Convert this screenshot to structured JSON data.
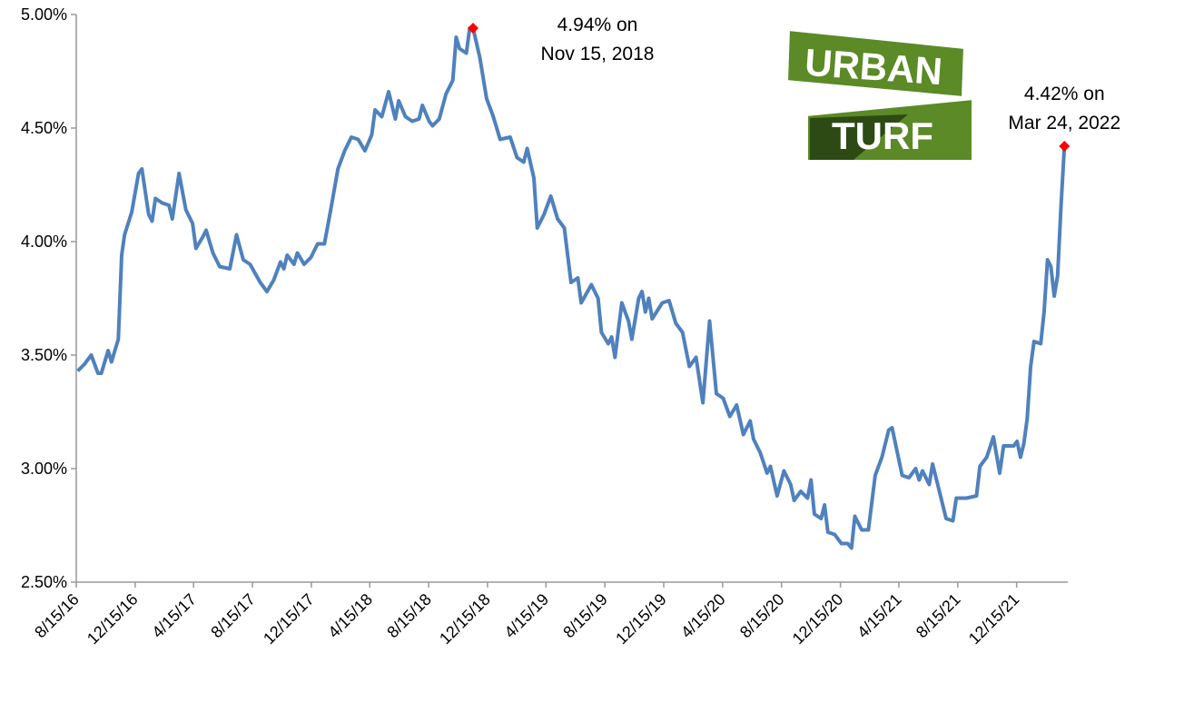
{
  "chart_data": {
    "type": "line",
    "color": "#4f81bd",
    "x": [
      "2016-08-18",
      "2016-09-01",
      "2016-09-15",
      "2016-09-29",
      "2016-10-06",
      "2016-10-20",
      "2016-10-27",
      "2016-11-10",
      "2016-11-17",
      "2016-11-23",
      "2016-12-08",
      "2016-12-22",
      "2016-12-29",
      "2017-01-12",
      "2017-01-19",
      "2017-01-26",
      "2017-02-09",
      "2017-02-23",
      "2017-03-02",
      "2017-03-16",
      "2017-03-30",
      "2017-04-13",
      "2017-04-20",
      "2017-05-04",
      "2017-05-11",
      "2017-05-25",
      "2017-06-08",
      "2017-06-29",
      "2017-07-13",
      "2017-07-27",
      "2017-08-10",
      "2017-08-31",
      "2017-09-14",
      "2017-09-28",
      "2017-10-12",
      "2017-10-19",
      "2017-10-26",
      "2017-11-09",
      "2017-11-16",
      "2017-11-30",
      "2017-12-14",
      "2017-12-28",
      "2018-01-11",
      "2018-01-25",
      "2018-02-08",
      "2018-02-22",
      "2018-03-08",
      "2018-03-22",
      "2018-04-05",
      "2018-04-19",
      "2018-04-26",
      "2018-05-10",
      "2018-05-24",
      "2018-06-07",
      "2018-06-14",
      "2018-06-28",
      "2018-07-12",
      "2018-07-26",
      "2018-08-02",
      "2018-08-16",
      "2018-08-23",
      "2018-09-06",
      "2018-09-20",
      "2018-10-04",
      "2018-10-11",
      "2018-10-18",
      "2018-11-01",
      "2018-11-08",
      "2018-11-15",
      "2018-11-29",
      "2018-12-13",
      "2018-12-27",
      "2019-01-10",
      "2019-01-31",
      "2019-02-14",
      "2019-02-28",
      "2019-03-07",
      "2019-03-21",
      "2019-03-28",
      "2019-04-11",
      "2019-04-25",
      "2019-05-09",
      "2019-05-23",
      "2019-06-06",
      "2019-06-20",
      "2019-06-27",
      "2019-07-18",
      "2019-08-01",
      "2019-08-08",
      "2019-08-22",
      "2019-08-29",
      "2019-09-05",
      "2019-09-19",
      "2019-10-03",
      "2019-10-10",
      "2019-10-24",
      "2019-10-31",
      "2019-11-07",
      "2019-11-14",
      "2019-11-21",
      "2019-12-12",
      "2019-12-26",
      "2020-01-09",
      "2020-01-23",
      "2020-02-06",
      "2020-02-20",
      "2020-03-05",
      "2020-03-19",
      "2020-04-02",
      "2020-04-16",
      "2020-04-30",
      "2020-05-14",
      "2020-05-28",
      "2020-06-11",
      "2020-06-18",
      "2020-07-02",
      "2020-07-16",
      "2020-07-23",
      "2020-08-06",
      "2020-08-20",
      "2020-09-03",
      "2020-09-10",
      "2020-09-24",
      "2020-10-08",
      "2020-10-15",
      "2020-10-22",
      "2020-11-05",
      "2020-11-12",
      "2020-11-19",
      "2020-12-03",
      "2020-12-17",
      "2020-12-30",
      "2021-01-07",
      "2021-01-14",
      "2021-01-28",
      "2021-02-11",
      "2021-02-25",
      "2021-03-11",
      "2021-03-25",
      "2021-04-01",
      "2021-04-15",
      "2021-04-22",
      "2021-05-06",
      "2021-05-20",
      "2021-05-27",
      "2021-06-03",
      "2021-06-17",
      "2021-06-24",
      "2021-07-08",
      "2021-07-22",
      "2021-08-05",
      "2021-08-12",
      "2021-09-02",
      "2021-09-23",
      "2021-09-30",
      "2021-10-14",
      "2021-10-28",
      "2021-11-10",
      "2021-11-18",
      "2021-12-09",
      "2021-12-16",
      "2021-12-23",
      "2021-12-30",
      "2022-01-06",
      "2022-01-13",
      "2022-01-20",
      "2022-02-03",
      "2022-02-10",
      "2022-02-17",
      "2022-02-24",
      "2022-03-03",
      "2022-03-10",
      "2022-03-17",
      "2022-03-24"
    ],
    "values": [
      3.43,
      3.46,
      3.5,
      3.42,
      3.42,
      3.52,
      3.47,
      3.57,
      3.94,
      4.03,
      4.13,
      4.3,
      4.32,
      4.12,
      4.09,
      4.19,
      4.17,
      4.16,
      4.1,
      4.3,
      4.14,
      4.08,
      3.97,
      4.02,
      4.05,
      3.95,
      3.89,
      3.88,
      4.03,
      3.92,
      3.9,
      3.82,
      3.78,
      3.83,
      3.91,
      3.88,
      3.94,
      3.9,
      3.95,
      3.9,
      3.93,
      3.99,
      3.99,
      4.15,
      4.32,
      4.4,
      4.46,
      4.45,
      4.4,
      4.47,
      4.58,
      4.55,
      4.66,
      4.54,
      4.62,
      4.55,
      4.53,
      4.54,
      4.6,
      4.53,
      4.51,
      4.54,
      4.65,
      4.71,
      4.9,
      4.85,
      4.83,
      4.94,
      4.94,
      4.81,
      4.63,
      4.55,
      4.45,
      4.46,
      4.37,
      4.35,
      4.41,
      4.28,
      4.06,
      4.12,
      4.2,
      4.1,
      4.06,
      3.82,
      3.84,
      3.73,
      3.81,
      3.75,
      3.6,
      3.55,
      3.58,
      3.49,
      3.73,
      3.65,
      3.57,
      3.75,
      3.78,
      3.69,
      3.75,
      3.66,
      3.73,
      3.74,
      3.64,
      3.6,
      3.45,
      3.49,
      3.29,
      3.65,
      3.33,
      3.31,
      3.23,
      3.28,
      3.15,
      3.21,
      3.13,
      3.07,
      2.98,
      3.01,
      2.88,
      2.99,
      2.93,
      2.86,
      2.9,
      2.87,
      2.95,
      2.8,
      2.78,
      2.84,
      2.72,
      2.71,
      2.67,
      2.67,
      2.65,
      2.79,
      2.73,
      2.73,
      2.97,
      3.05,
      3.17,
      3.18,
      3.04,
      2.97,
      2.96,
      3.0,
      2.95,
      2.99,
      2.93,
      3.02,
      2.9,
      2.78,
      2.77,
      2.87,
      2.87,
      2.88,
      3.01,
      3.05,
      3.14,
      2.98,
      3.1,
      3.1,
      3.12,
      3.05,
      3.11,
      3.22,
      3.45,
      3.56,
      3.55,
      3.69,
      3.92,
      3.89,
      3.76,
      3.85,
      4.16,
      4.42
    ],
    "xlim": [
      "2016-08-15",
      "2022-03-31"
    ],
    "xticks": [
      {
        "value": "2016-08-15",
        "label": "8/15/16"
      },
      {
        "value": "2016-12-15",
        "label": "12/15/16"
      },
      {
        "value": "2017-04-15",
        "label": "4/15/17"
      },
      {
        "value": "2017-08-15",
        "label": "8/15/17"
      },
      {
        "value": "2017-12-15",
        "label": "12/15/17"
      },
      {
        "value": "2018-04-15",
        "label": "4/15/18"
      },
      {
        "value": "2018-08-15",
        "label": "8/15/18"
      },
      {
        "value": "2018-12-15",
        "label": "12/15/18"
      },
      {
        "value": "2019-04-15",
        "label": "4/15/19"
      },
      {
        "value": "2019-08-15",
        "label": "8/15/19"
      },
      {
        "value": "2019-12-15",
        "label": "12/15/19"
      },
      {
        "value": "2020-04-15",
        "label": "4/15/20"
      },
      {
        "value": "2020-08-15",
        "label": "8/15/20"
      },
      {
        "value": "2020-12-15",
        "label": "12/15/20"
      },
      {
        "value": "2021-04-15",
        "label": "4/15/21"
      },
      {
        "value": "2021-08-15",
        "label": "8/15/21"
      },
      {
        "value": "2021-12-15",
        "label": "12/15/21"
      }
    ],
    "ylim": [
      2.5,
      5
    ],
    "yticks": [
      {
        "value": 2.5,
        "label": "2.50%"
      },
      {
        "value": 3,
        "label": "3.00%"
      },
      {
        "value": 3.5,
        "label": "3.50%"
      },
      {
        "value": 4,
        "label": "4.00%"
      },
      {
        "value": 4.5,
        "label": "4.50%"
      },
      {
        "value": 5,
        "label": "5.00%"
      }
    ],
    "highlights": [
      {
        "x": "2018-11-15",
        "value": 4.94,
        "color": "#ff0000",
        "label": [
          "4.94% on",
          "Nov 15, 2018"
        ]
      },
      {
        "x": "2022-03-24",
        "value": 4.42,
        "color": "#ff0000",
        "label": [
          "4.42% on",
          "Mar 24, 2022"
        ]
      }
    ]
  },
  "logo": [
    "URBAN",
    "TURF"
  ]
}
